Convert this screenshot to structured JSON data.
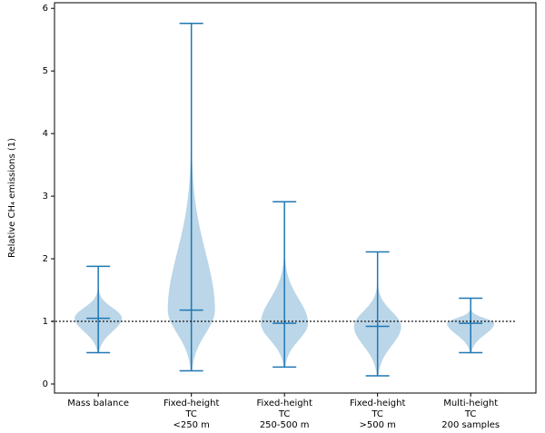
{
  "chart_data": {
    "type": "violin",
    "ylabel": "Relative CH₄ emissions (1)",
    "categories": [
      [
        "Mass balance"
      ],
      [
        "Fixed-height",
        "TC",
        "<250 m"
      ],
      [
        "Fixed-height",
        "TC",
        "250-500 m"
      ],
      [
        "Fixed-height",
        "TC",
        ">500 m"
      ],
      [
        "Multi-height",
        "TC",
        "200 samples"
      ]
    ],
    "min": [
      0.5,
      0.21,
      0.27,
      0.13,
      0.5
    ],
    "max": [
      1.88,
      5.76,
      2.91,
      2.11,
      1.37
    ],
    "mean": [
      1.05,
      1.18,
      0.97,
      0.92,
      0.97
    ],
    "color": "#1f77b4",
    "reference": 1,
    "ylim": [
      -0.145,
      6.09
    ],
    "yticks": [
      0,
      1,
      2,
      3,
      4,
      5,
      6
    ]
  }
}
